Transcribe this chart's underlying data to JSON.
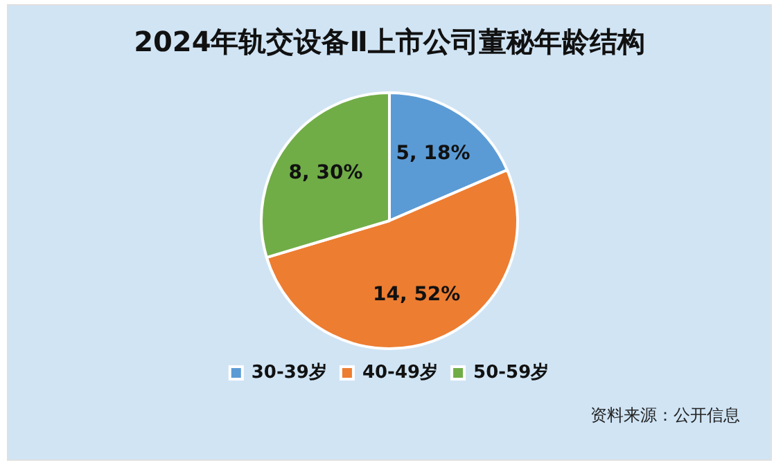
{
  "chart_data": {
    "type": "pie",
    "title": "2024年轨交设备Ⅱ上市公司董秘年龄结构",
    "categories": [
      "30-39岁",
      "40-49岁",
      "50-59岁"
    ],
    "values": [
      5,
      14,
      8
    ],
    "colors": [
      "#5b9bd5",
      "#ed7d31",
      "#70ad47"
    ],
    "value_labels": [
      "5, 18%",
      "14, 52%",
      "8, 30%"
    ],
    "legend": "bottom",
    "annotations": [
      "资料来源：公开信息"
    ]
  }
}
